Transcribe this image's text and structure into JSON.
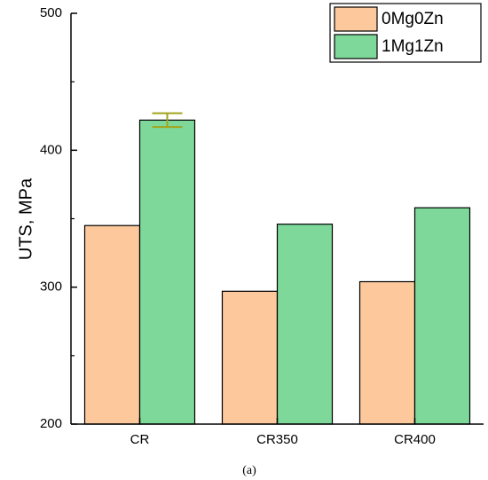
{
  "chart_data": {
    "type": "bar",
    "categories": [
      "CR",
      "CR350",
      "CR400"
    ],
    "series": [
      {
        "name": "0Mg0Zn",
        "values": [
          345,
          297,
          304
        ],
        "color": "#FDC99C"
      },
      {
        "name": "1Mg1Zn",
        "values": [
          422,
          346,
          358
        ],
        "color": "#7DD89A"
      }
    ],
    "error_bars": [
      {
        "series": "1Mg1Zn",
        "category": "CR",
        "low": 417,
        "high": 427,
        "color": "#A3A31A"
      }
    ],
    "ylabel": "UTS, MPa",
    "xlabel": "",
    "ylim": [
      200,
      500
    ],
    "yticks": [
      "200",
      "300",
      "400",
      "500"
    ],
    "legend": {
      "position": "top-right",
      "entries": [
        "0Mg0Zn",
        "1Mg1Zn"
      ]
    },
    "grid": false
  },
  "caption": "(a)"
}
